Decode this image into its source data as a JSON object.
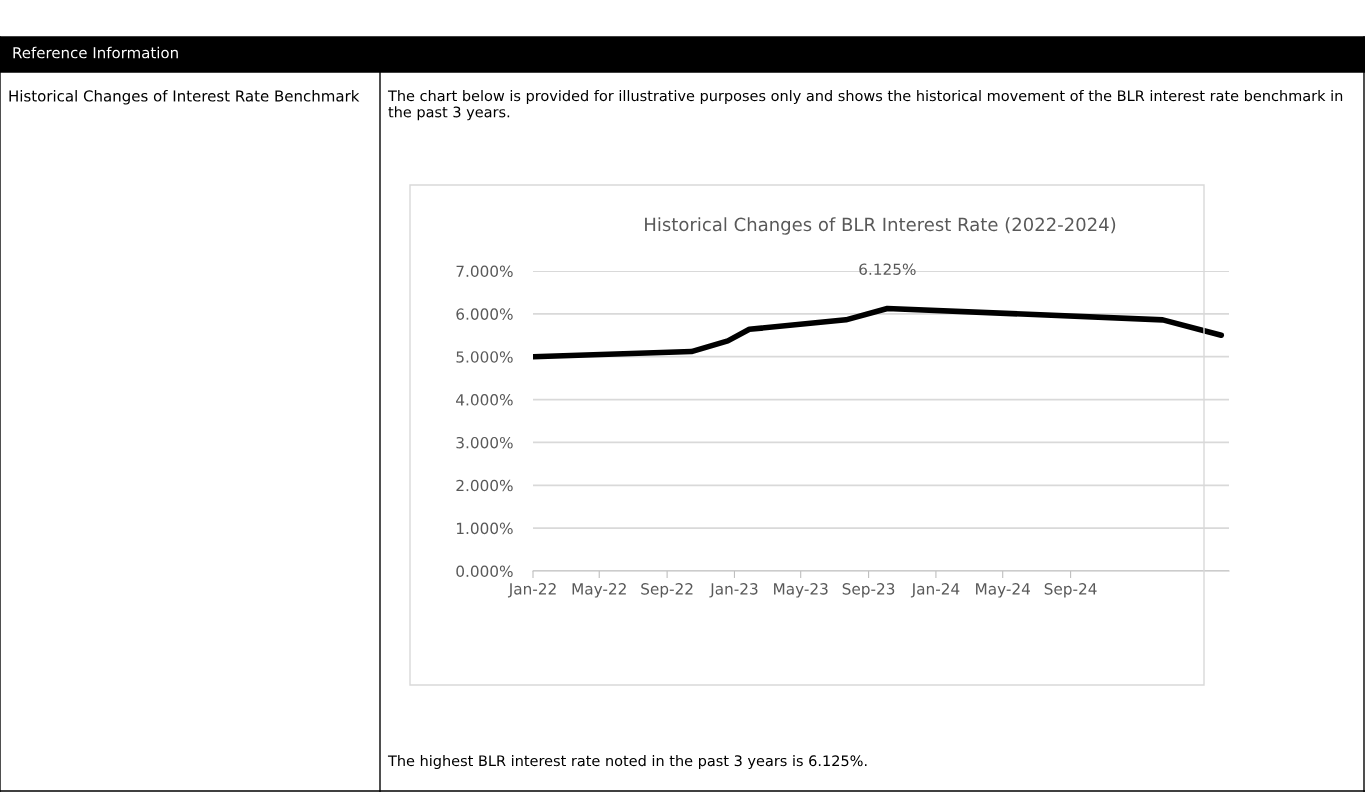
{
  "chart_data": {
    "type": "line",
    "title": "Historical Changes of BLR Interest Rate (2022-2024)",
    "x": [
      "2022-01-01",
      "2022-10-15",
      "2022-12-20",
      "2023-01-28",
      "2023-07-22",
      "2023-10-05",
      "2025-02-15",
      "2025-06-01"
    ],
    "series": [
      {
        "color": "#000000",
        "values": [
          5.0,
          5.12,
          5.37,
          5.64,
          5.86,
          6.125,
          5.86,
          5.5
        ],
        "value_labels": [
          null,
          null,
          null,
          null,
          null,
          "6.125%",
          null,
          null
        ]
      }
    ],
    "xlim": [
      "2022-01-01",
      "2025-06-15"
    ],
    "xticks": [
      {
        "value": "2022-01-01",
        "label": "Jan-22"
      },
      {
        "value": "2022-05-01",
        "label": "May-22"
      },
      {
        "value": "2022-09-01",
        "label": "Sep-22"
      },
      {
        "value": "2023-01-01",
        "label": "Jan-23"
      },
      {
        "value": "2023-05-01",
        "label": "May-23"
      },
      {
        "value": "2023-09-01",
        "label": "Sep-23"
      },
      {
        "value": "2024-01-01",
        "label": "Jan-24"
      },
      {
        "value": "2024-05-01",
        "label": "May-24"
      },
      {
        "value": "2024-09-01",
        "label": "Sep-24"
      }
    ],
    "ylim": [
      0,
      7
    ],
    "yticks": [
      {
        "value": 0,
        "label": "0.000%"
      },
      {
        "value": 1,
        "label": "1.000%"
      },
      {
        "value": 2,
        "label": "2.000%"
      },
      {
        "value": 3,
        "label": "3.000%"
      },
      {
        "value": 4,
        "label": "4.000%"
      },
      {
        "value": 5,
        "label": "5.000%"
      },
      {
        "value": 6,
        "label": "6.000%"
      },
      {
        "value": 7,
        "label": "7.000%"
      }
    ],
    "grid": "y",
    "marker": "none",
    "line_style": "solid",
    "annotations": [
      "Reference Information",
      "Historical Changes of Interest Rate Benchmark",
      "The chart below is provided for illustrative purposes only and shows the historical movement of the BLR interest rate benchmark in the past 3 years.",
      "The highest BLR interest rate noted in the past 3 years is 6.125%."
    ]
  }
}
